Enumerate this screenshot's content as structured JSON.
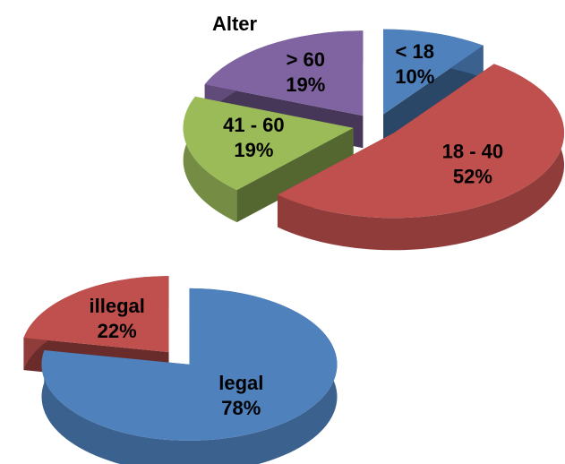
{
  "chart_data": [
    {
      "type": "pie3d",
      "title": "Alter",
      "categories": [
        "< 18",
        "18 - 40",
        "41 - 60",
        "> 60"
      ],
      "values": [
        10,
        52,
        19,
        19
      ],
      "value_labels": [
        "10%",
        "52%",
        "19%",
        "19%"
      ],
      "colors": [
        "#4f81bd",
        "#c0504d",
        "#9bbb59",
        "#8064a2"
      ]
    },
    {
      "type": "pie3d",
      "categories": [
        "legal",
        "illegal"
      ],
      "values": [
        78,
        22
      ],
      "value_labels": [
        "78%",
        "22%"
      ],
      "colors": [
        "#4f81bd",
        "#c0504d"
      ]
    }
  ]
}
